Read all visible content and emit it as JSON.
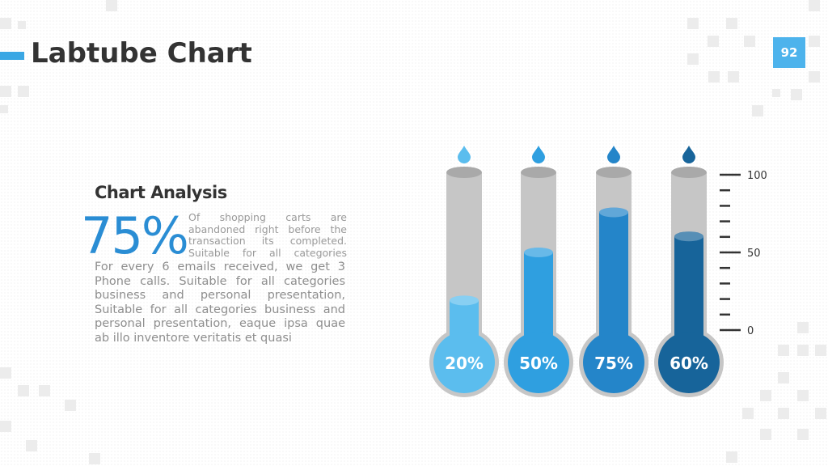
{
  "slide": {
    "title": "Labtube Chart",
    "page_number": "92"
  },
  "analysis": {
    "heading": "Chart Analysis",
    "highlight_value": "75%",
    "highlight_note": "Of shopping carts are abandoned right before the transaction its completed. Suitable for all categories",
    "body": "For every 6 emails received, we get 3 Phone calls. Suitable for all categories business and personal presentation, Suitable for all categories business and personal presentation, eaque ipsa quae ab illo inventore veritatis et quasi"
  },
  "colors": {
    "accent": "#3aa7e4",
    "tube_empty": "#c6c6c6",
    "tube_cap": "#a9a9a9",
    "text_dark": "#333333",
    "text_gray": "#8e8e8e"
  },
  "chart_data": {
    "type": "bar",
    "style": "test-tube",
    "categories": [
      "",
      "",
      "",
      ""
    ],
    "values": [
      20,
      50,
      75,
      60
    ],
    "labels": [
      "20%",
      "50%",
      "75%",
      "60%"
    ],
    "colors": [
      "#5bbdee",
      "#2f9fe0",
      "#2485c9",
      "#17649a"
    ],
    "ylim": [
      0,
      100
    ],
    "y_ticks": [
      "100",
      "50",
      "0"
    ],
    "minor_ticks": 11,
    "title": "",
    "xlabel": "",
    "ylabel": ""
  }
}
